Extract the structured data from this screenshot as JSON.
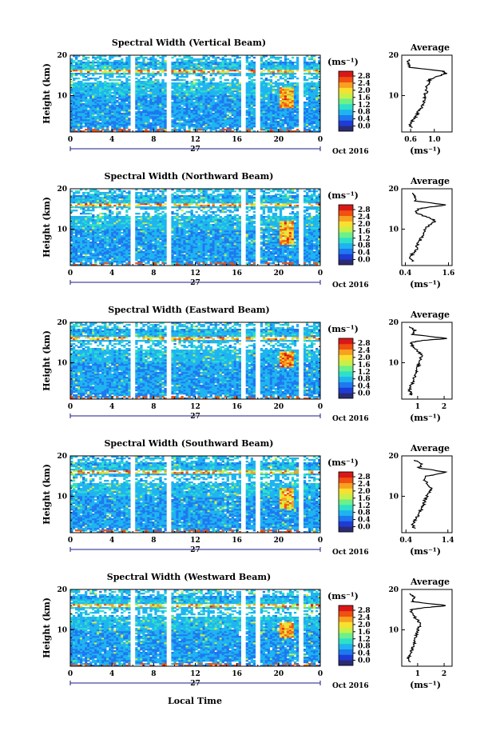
{
  "colorbar": {
    "unit": "(ms⁻¹)",
    "ticks": [
      "0.0",
      "0.4",
      "0.8",
      "1.2",
      "1.6",
      "2.0",
      "2.4",
      "2.8"
    ],
    "range": [
      0,
      3.0
    ],
    "colors": [
      "#2b2b74",
      "#1f3bd6",
      "#1e78f0",
      "#1fb4f0",
      "#2fe0c8",
      "#6cf08a",
      "#c8f048",
      "#f8e030",
      "#f8a020",
      "#f05010",
      "#d81818"
    ]
  },
  "date_label": "Oct 2016",
  "day_label": "27",
  "xlabel": "Local Time",
  "avg_title": "Average",
  "avg_ylabel": "(ms⁻¹)",
  "chart_data": [
    {
      "type": "heatmap",
      "title": "Spectral Width (Vertical Beam)",
      "ylabel": "Height (km)",
      "x_ticks": [
        "0",
        "4",
        "8",
        "12",
        "16",
        "20",
        "0"
      ],
      "y_ticks": [
        "20",
        "10"
      ],
      "x_range": [
        0,
        24
      ],
      "y_range": [
        1,
        20
      ],
      "data_gaps_hours": [
        [
          5.8,
          6.2
        ],
        [
          9.2,
          9.6
        ],
        [
          16.5,
          16.8
        ],
        [
          17.8,
          18.2
        ],
        [
          21.9,
          22.3
        ]
      ],
      "enhanced_region": {
        "time": [
          20.0,
          21.5
        ],
        "height": [
          7,
          12
        ],
        "value": 2.6
      },
      "average_profile": {
        "x_ticks": [
          "0.6",
          "1.0"
        ],
        "x_range": [
          0.45,
          1.3
        ],
        "heights": [
          2,
          3,
          4,
          5,
          6,
          7,
          8,
          9,
          10,
          11,
          12,
          13,
          14,
          15,
          15.5,
          16,
          17,
          18,
          19
        ],
        "values": [
          0.62,
          0.58,
          0.65,
          0.7,
          0.72,
          0.78,
          0.8,
          0.85,
          0.82,
          0.88,
          0.85,
          0.9,
          0.92,
          1.1,
          1.2,
          1.15,
          0.6,
          0.55,
          0.58
        ]
      }
    },
    {
      "type": "heatmap",
      "title": "Spectral Width (Northward Beam)",
      "ylabel": "Height (km)",
      "x_ticks": [
        "0",
        "4",
        "8",
        "12",
        "16",
        "20",
        "0"
      ],
      "y_ticks": [
        "20",
        "10"
      ],
      "x_range": [
        0,
        24
      ],
      "y_range": [
        1,
        20
      ],
      "data_gaps_hours": [
        [
          5.8,
          6.2
        ],
        [
          9.2,
          9.6
        ],
        [
          16.5,
          16.8
        ],
        [
          17.8,
          18.2
        ],
        [
          21.9,
          22.3
        ]
      ],
      "enhanced_region": {
        "time": [
          20.0,
          21.5
        ],
        "height": [
          6,
          12
        ],
        "value": 2.7
      },
      "average_profile": {
        "x_ticks": [
          "0.4",
          "1.6"
        ],
        "x_range": [
          0.3,
          1.7
        ],
        "heights": [
          2,
          3,
          4,
          5,
          6,
          7,
          8,
          9,
          10,
          11,
          12,
          13,
          14,
          15,
          15.5,
          16,
          17,
          18,
          19
        ],
        "values": [
          0.6,
          0.55,
          0.6,
          0.7,
          0.72,
          0.8,
          0.85,
          0.9,
          0.95,
          1.05,
          1.25,
          1.0,
          0.7,
          0.75,
          1.1,
          1.55,
          0.65,
          0.7,
          0.6
        ]
      }
    },
    {
      "type": "heatmap",
      "title": "Spectral Width (Eastward Beam)",
      "ylabel": "Height (km)",
      "x_ticks": [
        "0",
        "4",
        "8",
        "12",
        "16",
        "20",
        "0"
      ],
      "y_ticks": [
        "20",
        "10"
      ],
      "x_range": [
        0,
        24
      ],
      "y_range": [
        1,
        20
      ],
      "data_gaps_hours": [
        [
          5.8,
          6.2
        ],
        [
          9.2,
          9.6
        ],
        [
          16.5,
          16.8
        ],
        [
          17.8,
          18.2
        ],
        [
          21.9,
          22.3
        ]
      ],
      "enhanced_region": {
        "time": [
          20.0,
          21.5
        ],
        "height": [
          9,
          13
        ],
        "value": 2.8
      },
      "average_profile": {
        "x_ticks": [
          "1",
          "2"
        ],
        "x_range": [
          0.4,
          2.3
        ],
        "heights": [
          2,
          3,
          4,
          5,
          6,
          7,
          8,
          9,
          10,
          11,
          12,
          13,
          14,
          15,
          15.5,
          16,
          17,
          18,
          19
        ],
        "values": [
          0.75,
          0.7,
          0.72,
          0.8,
          0.85,
          0.9,
          0.95,
          1.0,
          1.05,
          1.1,
          1.15,
          1.0,
          0.8,
          0.75,
          1.2,
          2.1,
          0.8,
          0.9,
          0.7
        ]
      }
    },
    {
      "type": "heatmap",
      "title": "Spectral Width (Southward Beam)",
      "ylabel": "Height (km)",
      "x_ticks": [
        "0",
        "4",
        "8",
        "12",
        "16",
        "20",
        "0"
      ],
      "y_ticks": [
        "20",
        "10"
      ],
      "x_range": [
        0,
        24
      ],
      "y_range": [
        1,
        20
      ],
      "data_gaps_hours": [
        [
          5.8,
          6.2
        ],
        [
          9.2,
          9.6
        ],
        [
          16.5,
          16.8
        ],
        [
          17.8,
          18.2
        ],
        [
          21.9,
          22.3
        ]
      ],
      "enhanced_region": {
        "time": [
          20.0,
          21.5
        ],
        "height": [
          7,
          12
        ],
        "value": 2.6
      },
      "average_profile": {
        "x_ticks": [
          "0.4",
          "1.4"
        ],
        "x_range": [
          0.3,
          1.5
        ],
        "heights": [
          2,
          3,
          4,
          5,
          6,
          7,
          8,
          9,
          10,
          11,
          12,
          13,
          14,
          15,
          15.5,
          16,
          17,
          18,
          19
        ],
        "values": [
          0.6,
          0.55,
          0.62,
          0.68,
          0.72,
          0.78,
          0.82,
          0.85,
          0.9,
          0.95,
          1.0,
          0.92,
          0.85,
          0.9,
          1.15,
          1.35,
          0.7,
          0.8,
          0.6
        ]
      }
    },
    {
      "type": "heatmap",
      "title": "Spectral Width (Westward Beam)",
      "ylabel": "Height (km)",
      "x_ticks": [
        "0",
        "4",
        "8",
        "12",
        "16",
        "20",
        "0"
      ],
      "y_ticks": [
        "20",
        "10"
      ],
      "x_range": [
        0,
        24
      ],
      "y_range": [
        1,
        20
      ],
      "data_gaps_hours": [
        [
          5.8,
          6.2
        ],
        [
          9.2,
          9.6
        ],
        [
          16.5,
          16.8
        ],
        [
          17.8,
          18.2
        ],
        [
          21.9,
          22.3
        ]
      ],
      "enhanced_region": {
        "time": [
          20.0,
          21.5
        ],
        "height": [
          8,
          12
        ],
        "value": 2.7
      },
      "average_profile": {
        "x_ticks": [
          "1",
          "2"
        ],
        "x_range": [
          0.4,
          2.3
        ],
        "heights": [
          2,
          3,
          4,
          5,
          6,
          7,
          8,
          9,
          10,
          11,
          12,
          13,
          14,
          15,
          15.5,
          16,
          17,
          18,
          19
        ],
        "values": [
          0.7,
          0.65,
          0.7,
          0.78,
          0.82,
          0.88,
          0.92,
          0.95,
          1.0,
          1.1,
          1.05,
          0.9,
          0.8,
          0.75,
          1.3,
          2.1,
          0.8,
          0.9,
          0.7
        ]
      }
    }
  ]
}
